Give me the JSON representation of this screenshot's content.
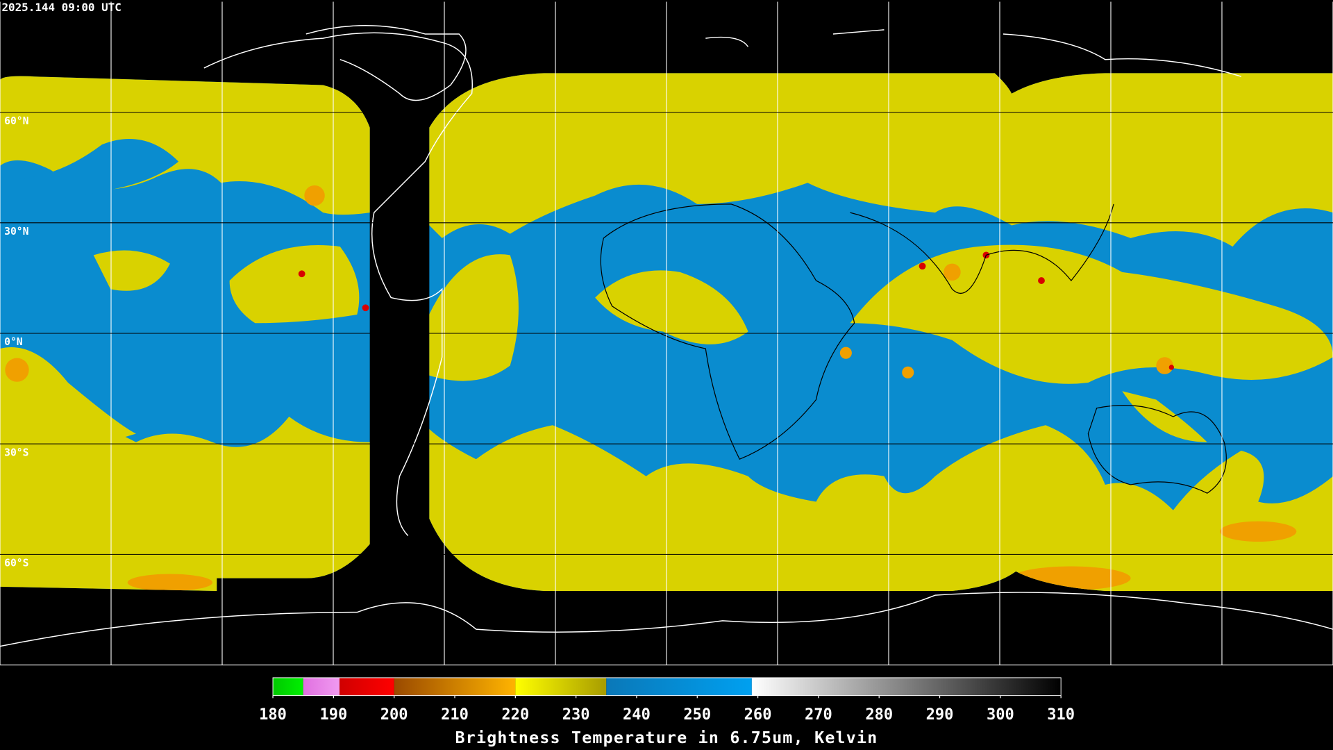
{
  "header": {
    "timestamp": "2025.144 09:00 UTC"
  },
  "map": {
    "latlim": [
      -90,
      90
    ],
    "lat_grid": [
      {
        "value": 60,
        "label": "60°N"
      },
      {
        "value": 30,
        "label": "30°N"
      },
      {
        "value": 0,
        "label": "0°N"
      },
      {
        "value": -30,
        "label": "30°S"
      },
      {
        "value": -60,
        "label": "60°S"
      }
    ]
  },
  "colorbar": {
    "title": "Brightness Temperature in 6.75um, Kelvin",
    "range": [
      180,
      310
    ],
    "ticks": [
      180,
      190,
      200,
      210,
      220,
      230,
      240,
      250,
      260,
      270,
      280,
      290,
      300,
      310
    ],
    "bands": [
      {
        "from": 180,
        "to": 185,
        "colors": [
          "#00c800",
          "#00f000"
        ]
      },
      {
        "from": 185,
        "to": 191,
        "colors": [
          "#e070e0",
          "#f09af0"
        ]
      },
      {
        "from": 191,
        "to": 200,
        "colors": [
          "#d00000",
          "#ff0000"
        ]
      },
      {
        "from": 200,
        "to": 220,
        "colors": [
          "#9a4a00",
          "#ffb400"
        ]
      },
      {
        "from": 220,
        "to": 235,
        "colors": [
          "#ffff00",
          "#a89c00"
        ]
      },
      {
        "from": 235,
        "to": 259,
        "colors": [
          "#0a78b8",
          "#00a0f0"
        ]
      },
      {
        "from": 259,
        "to": 310,
        "colors": [
          "#ffffff",
          "#000000"
        ]
      }
    ]
  }
}
